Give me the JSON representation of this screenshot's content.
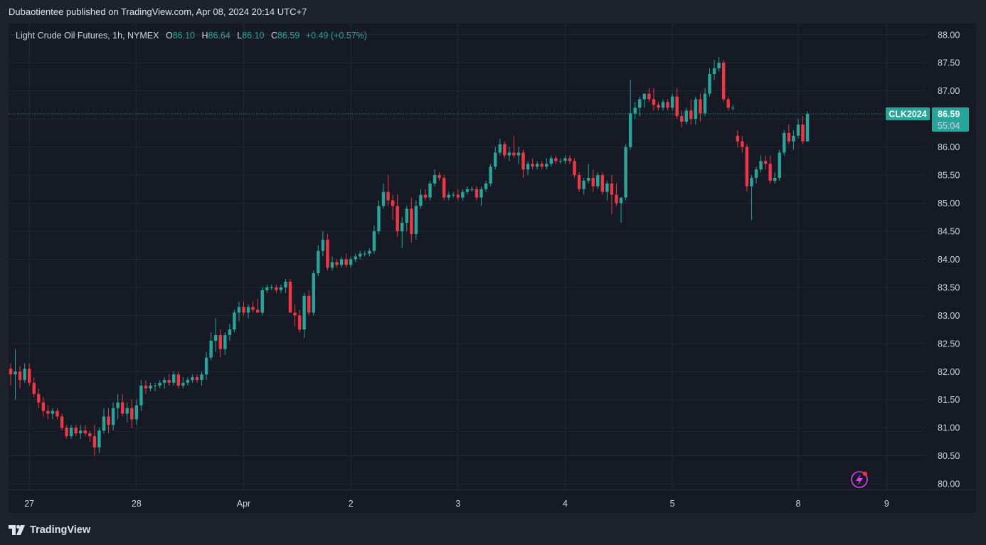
{
  "header": {
    "publisher_line": "Dubaotientee published on TradingView.com, Apr 08, 2024 20:14 UTC+7"
  },
  "legend": {
    "symbol_line": "Light Crude Oil Futures, 1h, NYMEX",
    "open_label": "O",
    "open_value": "86.10",
    "high_label": "H",
    "high_value": "86.64",
    "low_label": "L",
    "low_value": "86.10",
    "close_label": "C",
    "close_value": "86.59",
    "change": "+0.49 (+0.57%)"
  },
  "price_tag": {
    "symbol": "CLK2024",
    "price": "86.59",
    "countdown": "55:04"
  },
  "footer": {
    "brand": "TradingView"
  },
  "colors": {
    "up": "#26a69a",
    "down": "#f23645",
    "background": "#161a25",
    "grid": "#242833",
    "accent_icon": "#e040fb"
  },
  "icons": [
    "tradingview-logo-icon",
    "lightning-icon"
  ],
  "chart_data": {
    "type": "candlestick",
    "title": "Light Crude Oil Futures, 1h, NYMEX",
    "ylim": [
      79.9,
      88.2
    ],
    "y_ticks": [
      "88.00",
      "87.50",
      "87.00",
      "86.50",
      "86.00",
      "85.50",
      "85.00",
      "84.50",
      "84.00",
      "83.50",
      "83.00",
      "82.50",
      "82.00",
      "81.50",
      "81.00",
      "80.50",
      "80.00"
    ],
    "x_ticks": [
      {
        "label": "27",
        "index": 4
      },
      {
        "label": "28",
        "index": 27
      },
      {
        "label": "Apr",
        "index": 50
      },
      {
        "label": "2",
        "index": 73
      },
      {
        "label": "3",
        "index": 96
      },
      {
        "label": "4",
        "index": 119
      },
      {
        "label": "5",
        "index": 142
      },
      {
        "label": "8",
        "index": 169
      },
      {
        "label": "9",
        "index": 188
      }
    ],
    "grid": true,
    "last_price": 86.59,
    "candles": [
      [
        82.05,
        82.15,
        81.75,
        81.95
      ],
      [
        81.95,
        82.4,
        81.5,
        82.0
      ],
      [
        82.0,
        82.1,
        81.7,
        81.85
      ],
      [
        81.85,
        82.15,
        81.8,
        82.05
      ],
      [
        82.05,
        82.15,
        81.75,
        81.8
      ],
      [
        81.8,
        81.9,
        81.55,
        81.6
      ],
      [
        81.6,
        81.7,
        81.35,
        81.45
      ],
      [
        81.45,
        81.55,
        81.2,
        81.3
      ],
      [
        81.3,
        81.4,
        81.15,
        81.25
      ],
      [
        81.25,
        81.35,
        81.15,
        81.3
      ],
      [
        81.3,
        81.35,
        81.15,
        81.2
      ],
      [
        81.2,
        81.25,
        80.95,
        81.0
      ],
      [
        81.0,
        81.05,
        80.8,
        80.85
      ],
      [
        80.85,
        81.05,
        80.8,
        81.0
      ],
      [
        81.0,
        81.05,
        80.85,
        80.9
      ],
      [
        80.9,
        81.05,
        80.8,
        80.95
      ],
      [
        80.95,
        81.05,
        80.85,
        80.9
      ],
      [
        80.9,
        80.95,
        80.75,
        80.85
      ],
      [
        80.85,
        81.05,
        80.5,
        80.65
      ],
      [
        80.65,
        81.0,
        80.55,
        80.95
      ],
      [
        80.95,
        81.35,
        80.9,
        81.2
      ],
      [
        81.2,
        81.35,
        80.9,
        81.05
      ],
      [
        81.05,
        81.45,
        80.95,
        81.35
      ],
      [
        81.35,
        81.6,
        81.15,
        81.45
      ],
      [
        81.45,
        81.6,
        81.2,
        81.25
      ],
      [
        81.25,
        81.45,
        81.1,
        81.35
      ],
      [
        81.35,
        81.5,
        81.0,
        81.15
      ],
      [
        81.15,
        81.5,
        81.05,
        81.4
      ],
      [
        81.4,
        81.85,
        81.3,
        81.75
      ],
      [
        81.75,
        81.85,
        81.6,
        81.7
      ],
      [
        81.7,
        81.8,
        81.65,
        81.75
      ],
      [
        81.75,
        81.8,
        81.65,
        81.75
      ],
      [
        81.75,
        81.85,
        81.7,
        81.8
      ],
      [
        81.8,
        81.9,
        81.7,
        81.85
      ],
      [
        81.85,
        81.95,
        81.75,
        81.8
      ],
      [
        81.8,
        82.0,
        81.75,
        81.95
      ],
      [
        81.95,
        82.0,
        81.7,
        81.75
      ],
      [
        81.75,
        81.9,
        81.7,
        81.8
      ],
      [
        81.8,
        81.9,
        81.75,
        81.85
      ],
      [
        81.85,
        81.95,
        81.8,
        81.9
      ],
      [
        81.9,
        81.95,
        81.8,
        81.85
      ],
      [
        81.85,
        82.0,
        81.75,
        81.95
      ],
      [
        81.95,
        82.35,
        81.85,
        82.25
      ],
      [
        82.25,
        82.7,
        82.2,
        82.55
      ],
      [
        82.55,
        82.95,
        82.35,
        82.65
      ],
      [
        82.65,
        82.75,
        82.25,
        82.4
      ],
      [
        82.4,
        82.7,
        82.3,
        82.65
      ],
      [
        82.65,
        82.85,
        82.55,
        82.75
      ],
      [
        82.75,
        83.1,
        82.7,
        83.05
      ],
      [
        83.05,
        83.25,
        82.9,
        83.15
      ],
      [
        83.15,
        83.25,
        83.0,
        83.05
      ],
      [
        83.05,
        83.2,
        82.95,
        83.15
      ],
      [
        83.15,
        83.25,
        83.05,
        83.1
      ],
      [
        83.1,
        83.3,
        83.05,
        83.05
      ],
      [
        83.05,
        83.5,
        83.0,
        83.45
      ],
      [
        83.45,
        83.55,
        83.4,
        83.5
      ],
      [
        83.5,
        83.55,
        83.45,
        83.5
      ],
      [
        83.5,
        83.55,
        83.4,
        83.45
      ],
      [
        83.45,
        83.55,
        83.4,
        83.5
      ],
      [
        83.5,
        83.65,
        83.4,
        83.6
      ],
      [
        83.6,
        83.65,
        83.05,
        83.05
      ],
      [
        83.05,
        83.2,
        82.8,
        83.0
      ],
      [
        83.0,
        83.1,
        82.7,
        82.75
      ],
      [
        82.75,
        83.4,
        82.6,
        83.35
      ],
      [
        83.35,
        83.45,
        83.0,
        83.05
      ],
      [
        83.05,
        83.8,
        83.0,
        83.75
      ],
      [
        83.75,
        84.25,
        83.7,
        84.15
      ],
      [
        84.15,
        84.5,
        84.05,
        84.35
      ],
      [
        84.35,
        84.45,
        83.8,
        83.85
      ],
      [
        83.85,
        84.05,
        83.8,
        83.95
      ],
      [
        83.95,
        84.0,
        83.85,
        83.9
      ],
      [
        83.9,
        84.05,
        83.85,
        84.0
      ],
      [
        84.0,
        84.1,
        83.85,
        83.9
      ],
      [
        83.9,
        84.05,
        83.85,
        84.0
      ],
      [
        84.0,
        84.1,
        83.95,
        84.05
      ],
      [
        84.05,
        84.15,
        84.0,
        84.1
      ],
      [
        84.1,
        84.15,
        84.05,
        84.1
      ],
      [
        84.1,
        84.2,
        84.05,
        84.15
      ],
      [
        84.15,
        84.6,
        84.1,
        84.5
      ],
      [
        84.5,
        85.05,
        84.45,
        84.95
      ],
      [
        84.95,
        85.35,
        84.9,
        85.2
      ],
      [
        85.2,
        85.5,
        84.95,
        85.05
      ],
      [
        85.05,
        85.15,
        84.7,
        84.95
      ],
      [
        84.95,
        85.15,
        84.4,
        84.5
      ],
      [
        84.5,
        84.75,
        84.2,
        84.65
      ],
      [
        84.65,
        84.95,
        84.5,
        84.9
      ],
      [
        84.9,
        85.1,
        84.3,
        84.45
      ],
      [
        84.45,
        85.05,
        84.35,
        84.95
      ],
      [
        84.95,
        85.25,
        84.9,
        85.15
      ],
      [
        85.15,
        85.25,
        85.05,
        85.1
      ],
      [
        85.1,
        85.4,
        85.05,
        85.35
      ],
      [
        85.35,
        85.6,
        85.3,
        85.5
      ],
      [
        85.5,
        85.55,
        85.4,
        85.45
      ],
      [
        85.45,
        85.5,
        85.05,
        85.1
      ],
      [
        85.1,
        85.2,
        85.05,
        85.15
      ],
      [
        85.15,
        85.2,
        85.1,
        85.15
      ],
      [
        85.15,
        85.25,
        85.05,
        85.1
      ],
      [
        85.1,
        85.25,
        85.05,
        85.2
      ],
      [
        85.2,
        85.3,
        85.15,
        85.25
      ],
      [
        85.25,
        85.3,
        85.2,
        85.25
      ],
      [
        85.25,
        85.3,
        85.05,
        85.1
      ],
      [
        85.1,
        85.3,
        84.95,
        85.25
      ],
      [
        85.25,
        85.4,
        85.2,
        85.35
      ],
      [
        85.35,
        85.7,
        85.3,
        85.65
      ],
      [
        85.65,
        86.0,
        85.6,
        85.9
      ],
      [
        85.9,
        86.15,
        85.85,
        86.05
      ],
      [
        86.05,
        86.1,
        85.8,
        85.85
      ],
      [
        85.85,
        86.0,
        85.75,
        85.9
      ],
      [
        85.9,
        86.2,
        85.8,
        85.85
      ],
      [
        85.85,
        86.0,
        85.7,
        85.9
      ],
      [
        85.9,
        85.95,
        85.45,
        85.6
      ],
      [
        85.6,
        85.75,
        85.5,
        85.7
      ],
      [
        85.7,
        85.8,
        85.6,
        85.65
      ],
      [
        85.65,
        85.75,
        85.6,
        85.7
      ],
      [
        85.7,
        85.75,
        85.6,
        85.65
      ],
      [
        85.65,
        85.8,
        85.6,
        85.7
      ],
      [
        85.7,
        85.85,
        85.65,
        85.8
      ],
      [
        85.8,
        85.85,
        85.7,
        85.75
      ],
      [
        85.75,
        85.8,
        85.7,
        85.75
      ],
      [
        85.75,
        85.85,
        85.7,
        85.8
      ],
      [
        85.8,
        85.85,
        85.7,
        85.75
      ],
      [
        85.75,
        85.8,
        85.45,
        85.5
      ],
      [
        85.5,
        85.55,
        85.2,
        85.25
      ],
      [
        85.25,
        85.45,
        85.15,
        85.4
      ],
      [
        85.4,
        85.7,
        85.35,
        85.45
      ],
      [
        85.45,
        85.6,
        85.2,
        85.3
      ],
      [
        85.3,
        85.55,
        85.25,
        85.5
      ],
      [
        85.5,
        85.55,
        85.15,
        85.2
      ],
      [
        85.2,
        85.4,
        85.05,
        85.35
      ],
      [
        85.35,
        85.5,
        84.8,
        85.15
      ],
      [
        85.15,
        85.35,
        84.95,
        85.0
      ],
      [
        85.0,
        85.1,
        84.65,
        85.1
      ],
      [
        85.1,
        86.05,
        85.05,
        86.0
      ],
      [
        86.0,
        87.2,
        85.95,
        86.6
      ],
      [
        86.6,
        86.8,
        86.5,
        86.7
      ],
      [
        86.7,
        86.9,
        86.55,
        86.85
      ],
      [
        86.85,
        86.95,
        86.7,
        86.95
      ],
      [
        86.95,
        87.05,
        86.8,
        86.85
      ],
      [
        86.85,
        87.05,
        86.65,
        86.75
      ],
      [
        86.75,
        86.8,
        86.65,
        86.7
      ],
      [
        86.7,
        86.85,
        86.65,
        86.8
      ],
      [
        86.8,
        86.85,
        86.65,
        86.7
      ],
      [
        86.7,
        86.95,
        86.65,
        86.9
      ],
      [
        86.9,
        87.05,
        86.5,
        86.55
      ],
      [
        86.55,
        86.65,
        86.35,
        86.45
      ],
      [
        86.45,
        86.7,
        86.4,
        86.65
      ],
      [
        86.65,
        86.85,
        86.4,
        86.5
      ],
      [
        86.5,
        86.9,
        86.4,
        86.85
      ],
      [
        86.85,
        86.95,
        86.45,
        86.6
      ],
      [
        86.6,
        87.05,
        86.55,
        86.95
      ],
      [
        86.95,
        87.4,
        86.9,
        87.3
      ],
      [
        87.3,
        87.55,
        87.2,
        87.4
      ],
      [
        87.4,
        87.6,
        87.35,
        87.5
      ],
      [
        87.5,
        87.55,
        86.8,
        86.85
      ],
      [
        86.85,
        86.9,
        86.65,
        86.7
      ],
      [
        86.7,
        86.75,
        86.65,
        86.7
      ],
      [
        86.2,
        86.3,
        86.0,
        86.1
      ],
      [
        86.1,
        86.2,
        85.9,
        86.0
      ],
      [
        86.0,
        86.05,
        85.2,
        85.3
      ],
      [
        85.3,
        85.5,
        84.7,
        85.45
      ],
      [
        85.45,
        85.65,
        85.35,
        85.6
      ],
      [
        85.6,
        85.85,
        85.55,
        85.75
      ],
      [
        85.75,
        85.85,
        85.6,
        85.7
      ],
      [
        85.7,
        85.85,
        85.35,
        85.4
      ],
      [
        85.4,
        85.55,
        85.35,
        85.45
      ],
      [
        85.45,
        85.95,
        85.4,
        85.9
      ],
      [
        85.9,
        86.3,
        85.85,
        86.25
      ],
      [
        86.25,
        86.4,
        86.05,
        86.1
      ],
      [
        86.1,
        86.3,
        85.95,
        86.2
      ],
      [
        86.2,
        86.5,
        86.15,
        86.4
      ],
      [
        86.4,
        86.55,
        86.05,
        86.1
      ],
      [
        86.1,
        86.64,
        86.1,
        86.59
      ]
    ]
  }
}
